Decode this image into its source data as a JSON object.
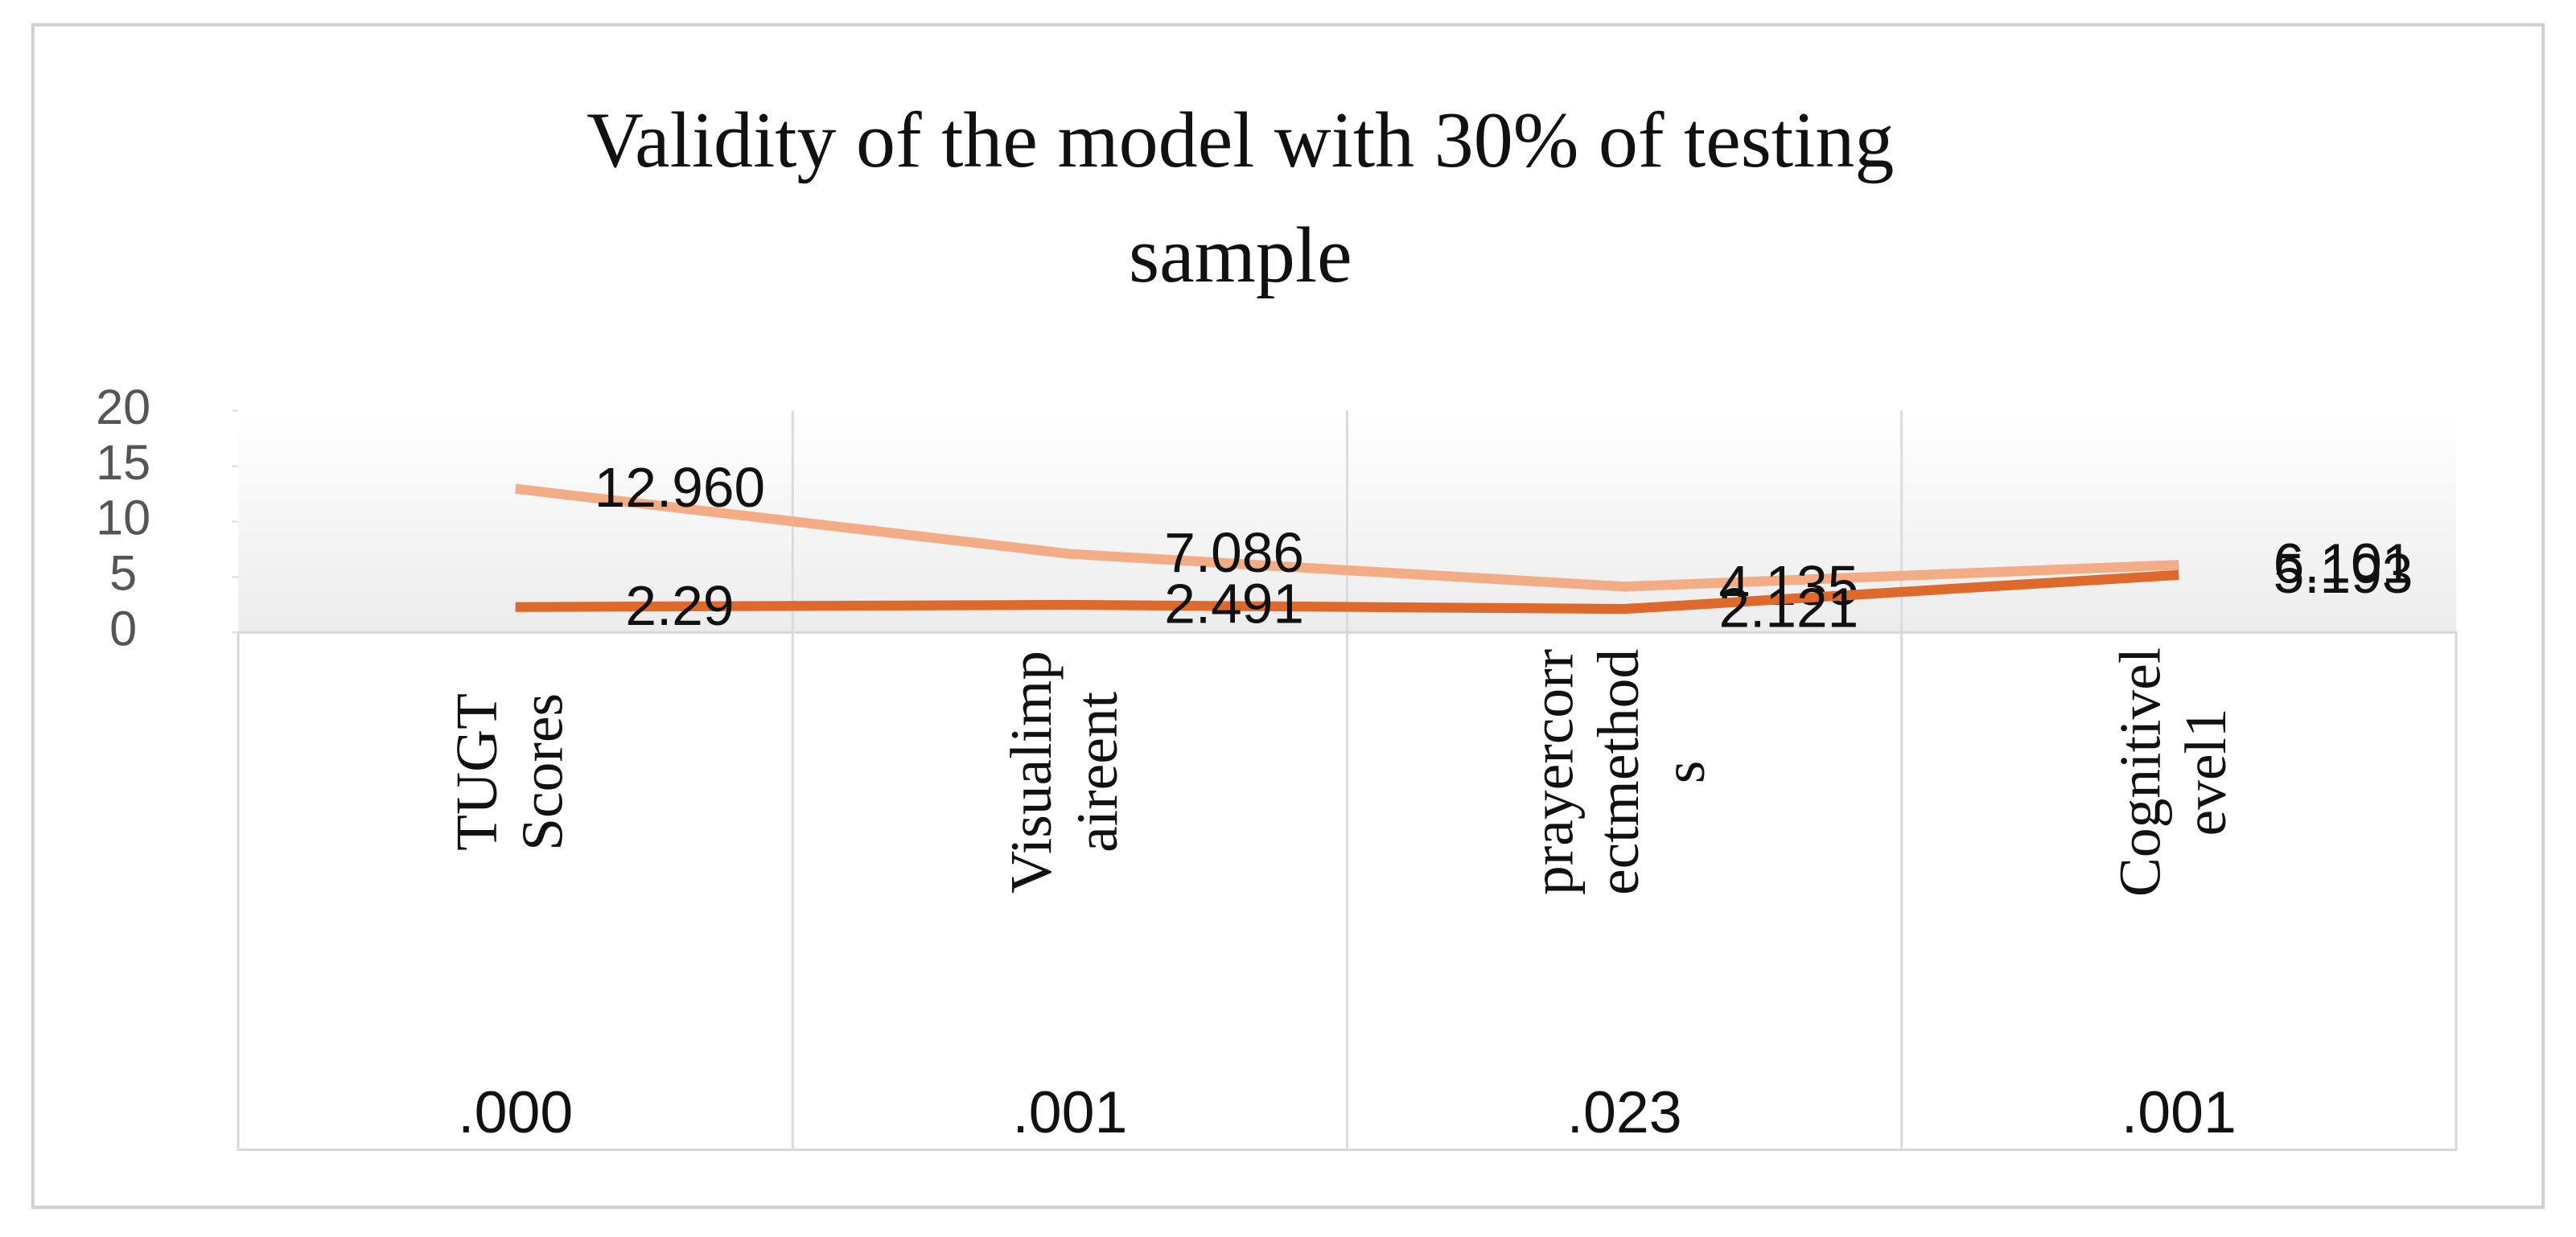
{
  "chart_data": {
    "type": "line",
    "title": "Validity of the model with 30% of  testing sample",
    "categories": [
      "TUGT Scores",
      "Visualimp aireent",
      "prayercorr ectmethod s",
      "Cognitivel evel1"
    ],
    "table_values": [
      ".000",
      ".001",
      ".023",
      ".001"
    ],
    "series": [
      {
        "color": "#f2ad86",
        "values": [
          12.96,
          7.086,
          4.135,
          6.101
        ],
        "value_labels": [
          "12.960",
          "7.086",
          "4.135",
          "6.101"
        ]
      },
      {
        "color": "#dd6a2c",
        "values": [
          2.29,
          2.491,
          2.121,
          5.193
        ],
        "value_labels": [
          "2.29",
          "2.491",
          "2.121",
          "5.193"
        ]
      }
    ],
    "ylim": [
      0,
      20
    ],
    "yticks": [
      0,
      5,
      10,
      15,
      20
    ]
  }
}
